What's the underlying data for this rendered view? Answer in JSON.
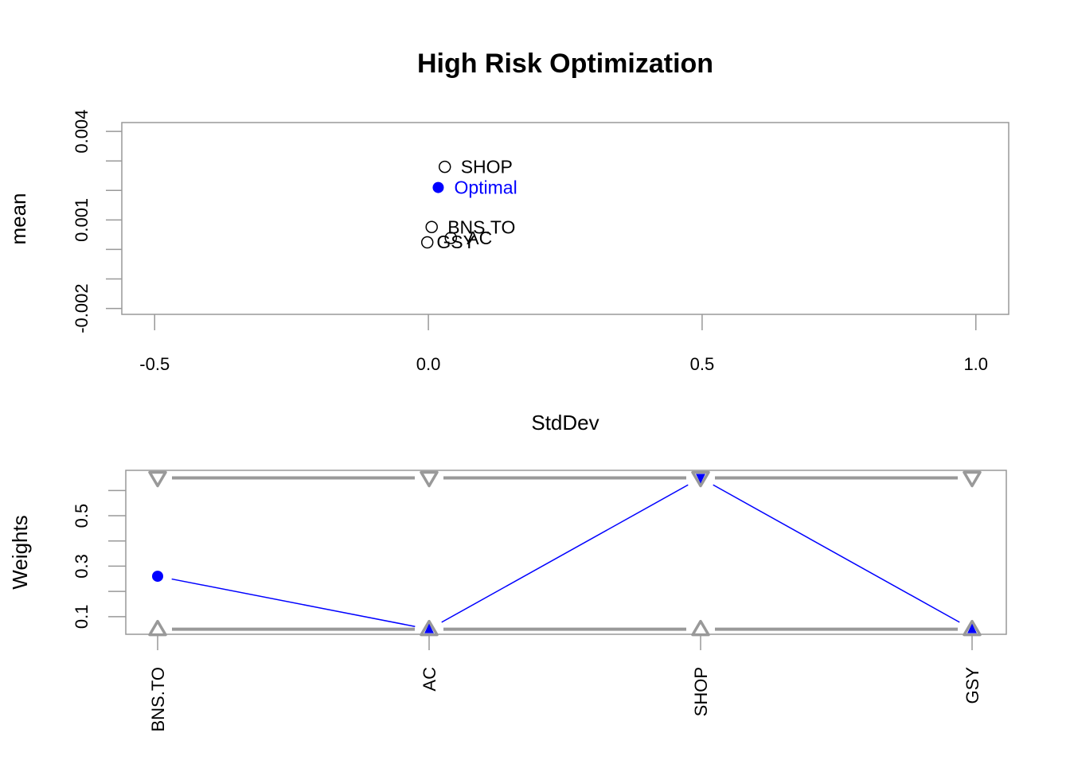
{
  "title": "High Risk Optimization",
  "colors": {
    "optimal": "#0000FF",
    "frame": "#999999",
    "text": "#000000"
  },
  "chart_data": [
    {
      "type": "scatter",
      "title": "High Risk Optimization",
      "xlabel": "StdDev",
      "ylabel": "mean",
      "xlim": [
        -0.56,
        1.06
      ],
      "ylim": [
        -0.0022,
        0.0043
      ],
      "xticks": [
        -0.5,
        0.0,
        0.5,
        1.0
      ],
      "xtick_labels": [
        "-0.5",
        "0.0",
        "0.5",
        "1.0"
      ],
      "yticks": [
        -0.002,
        -0.001,
        0.0,
        0.001,
        0.002,
        0.003,
        0.004
      ],
      "ytick_labels": [
        "-0.002",
        "",
        "",
        "0.001",
        "",
        "",
        "0.004"
      ],
      "points": [
        {
          "name": "SHOP",
          "x": 0.03,
          "y": 0.0028,
          "optimal": false
        },
        {
          "name": "Optimal",
          "x": 0.018,
          "y": 0.0021,
          "optimal": true
        },
        {
          "name": "BNS.TO",
          "x": 0.006,
          "y": 0.00076,
          "optimal": false
        },
        {
          "name": "AC",
          "x": 0.041,
          "y": 0.00039,
          "optimal": false
        },
        {
          "name": "GSY",
          "x": -0.002,
          "y": 0.00024,
          "optimal": false
        }
      ],
      "extra_labels": [
        {
          "text": "GSY",
          "x": 0.015,
          "y": 0.00026
        }
      ]
    },
    {
      "type": "line",
      "ylabel": "Weights",
      "categories": [
        "BNS.TO",
        "AC",
        "SHOP",
        "GSY"
      ],
      "ylim": [
        0.03,
        0.68
      ],
      "yticks": [
        0.1,
        0.2,
        0.3,
        0.4,
        0.5,
        0.6
      ],
      "ytick_labels": [
        "0.1",
        "",
        "0.3",
        "",
        "0.5",
        ""
      ],
      "weights": [
        0.26,
        0.05,
        0.65,
        0.05
      ],
      "upper_bound": 0.65,
      "lower_bound": 0.05
    }
  ]
}
